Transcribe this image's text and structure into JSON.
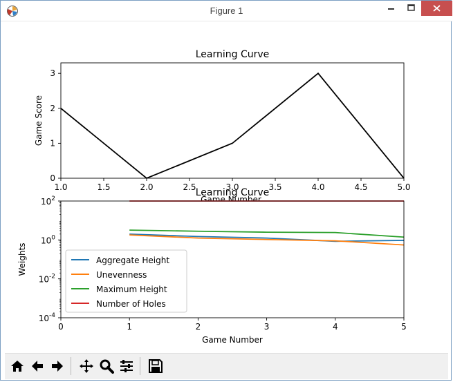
{
  "window": {
    "title": "Figure 1"
  },
  "toolbar": {
    "buttons": [
      "home-icon",
      "back-icon",
      "forward-icon",
      "pan-icon",
      "zoom-icon",
      "configure-icon",
      "save-icon"
    ]
  },
  "chart_data": [
    {
      "type": "line",
      "title": "Learning Curve",
      "xlabel": "Game Number",
      "ylabel": "Game Score",
      "xlim": [
        1.0,
        5.0
      ],
      "ylim": [
        0,
        3.3
      ],
      "xticks": [
        "1.0",
        "1.5",
        "2.0",
        "2.5",
        "3.0",
        "3.5",
        "4.0",
        "4.5",
        "5.0"
      ],
      "yticks": [
        "0",
        "1",
        "2",
        "3"
      ],
      "grid": false,
      "series": [
        {
          "x": [
            1,
            2,
            3,
            4,
            5
          ],
          "y": [
            2,
            0,
            1,
            3,
            0
          ],
          "color": "#000000"
        }
      ]
    },
    {
      "type": "line",
      "title": "Learning Curve",
      "xlabel": "Game Number",
      "ylabel": "Weights",
      "yscale": "log",
      "xlim": [
        0,
        5
      ],
      "ylim": [
        0.0001,
        100
      ],
      "xticks": [
        "0",
        "1",
        "2",
        "3",
        "4",
        "5"
      ],
      "yticks": [
        "10^-4",
        "10^-2",
        "10^0",
        "10^2"
      ],
      "legend_position": "lower-left",
      "grid": false,
      "series": [
        {
          "name": "Aggregate Height",
          "color": "#1f77b4",
          "x": [
            1,
            2,
            3,
            4,
            5
          ],
          "y": [
            2.0,
            1.5,
            1.25,
            0.85,
            0.95
          ]
        },
        {
          "name": "Unevenness",
          "color": "#ff7f0e",
          "x": [
            1,
            2,
            3,
            4,
            5
          ],
          "y": [
            1.8,
            1.25,
            1.05,
            0.9,
            0.55
          ]
        },
        {
          "name": "Maximum Height",
          "color": "#2ca02c",
          "x": [
            1,
            2,
            3,
            4,
            5
          ],
          "y": [
            3.2,
            2.8,
            2.5,
            2.4,
            1.4
          ]
        },
        {
          "name": "Number of Holes",
          "color": "#d62728",
          "x": [
            1,
            2,
            3,
            4,
            5
          ],
          "y": [
            100,
            100,
            100,
            100,
            100
          ]
        }
      ]
    }
  ]
}
